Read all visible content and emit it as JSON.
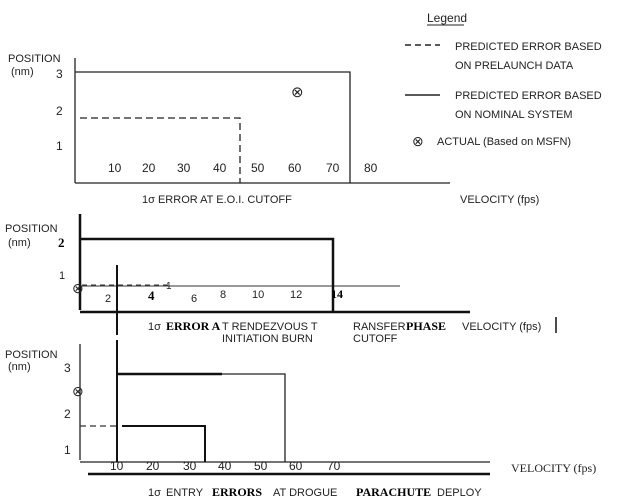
{
  "legend": {
    "title": "Legend",
    "predicted_prelaunch": [
      "PREDICTED ERROR BASED",
      "ON PRELAUNCH DATA"
    ],
    "predicted_nominal": [
      "PREDICTED ERROR BASED",
      "ON NOMINAL SYSTEM"
    ],
    "actual": "ACTUAL (Based on MSFN)",
    "actual_symbol": "⊗"
  },
  "colors": {
    "ink": "#222222",
    "paper": "#ffffff"
  },
  "chart_data": [
    {
      "type": "step",
      "title": "",
      "ylabel": [
        "POSITION",
        "(nm)"
      ],
      "xlabel": "VELOCITY (fps)",
      "caption": "1σ ERROR AT E.O.I. CUTOFF",
      "y_ticks": [
        "1",
        "2",
        "3"
      ],
      "x_ticks": [
        "10",
        "20",
        "30",
        "40",
        "50",
        "60",
        "70",
        "80"
      ],
      "xlim": [
        0,
        85
      ],
      "ylim": [
        0,
        3.4
      ],
      "series": [
        {
          "name": "PREDICTED ERROR BASED ON PRELAUNCH DATA",
          "style": "dashed",
          "velocity": 42,
          "position": 1.8
        },
        {
          "name": "PREDICTED ERROR BASED ON NOMINAL SYSTEM",
          "style": "solid",
          "velocity": 73,
          "position": 3.1
        }
      ],
      "actual": {
        "velocity": 60,
        "position": 2.5
      }
    },
    {
      "type": "step",
      "title": "",
      "ylabel": [
        "POSITION",
        "(nm)"
      ],
      "xlabel": "VELOCITY (fps)",
      "caption": [
        "1σ",
        "ERROR A",
        "T RENDEZVOUS T",
        "RANSFER",
        "PHASE"
      ],
      "caption2": [
        "INITIATION BURN",
        "CUTOFF"
      ],
      "y_ticks": [
        "1",
        "2"
      ],
      "y_tick_2_label": "2",
      "x_ticks": [
        "2",
        "4",
        "6",
        "8",
        "10",
        "12",
        "14"
      ],
      "x_tick_overlays": [
        "4",
        "1",
        "6"
      ],
      "xlim": [
        0,
        15
      ],
      "ylim": [
        0,
        2.5
      ],
      "series": [
        {
          "name": "PREDICTED ERROR BASED ON PRELAUNCH DATA",
          "style": "dashed",
          "velocity": 4.5,
          "position": 0.7
        },
        {
          "name": "PREDICTED ERROR BASED ON NOMINAL SYSTEM",
          "style": "solid",
          "velocity": 13.8,
          "position": 2.1
        }
      ],
      "actual": {
        "velocity": 0,
        "position": 0.55
      }
    },
    {
      "type": "step",
      "title": "",
      "ylabel": [
        "POSITION",
        "(nm)"
      ],
      "xlabel": "VELOCITY (fps)",
      "caption": [
        "1σ",
        "ENTRY",
        "ERRORS",
        "AT DROGUE",
        "PARACHUTE",
        "DEPLOY"
      ],
      "y_ticks": [
        "1",
        "2",
        "3"
      ],
      "x_ticks": [
        "10",
        "20",
        "30",
        "40",
        "50",
        "60",
        "70"
      ],
      "xlim": [
        0,
        80
      ],
      "ylim": [
        0,
        3.4
      ],
      "series": [
        {
          "name": "PREDICTED ERROR BASED ON PRELAUNCH DATA",
          "style": "dashed",
          "velocity": 35,
          "position": 1.8
        },
        {
          "name": "PREDICTED ERROR BASED ON NOMINAL SYSTEM",
          "style": "solid",
          "velocity": 57,
          "position": 3.1
        }
      ],
      "actual": {
        "velocity": 0,
        "position": 2.6
      }
    }
  ]
}
